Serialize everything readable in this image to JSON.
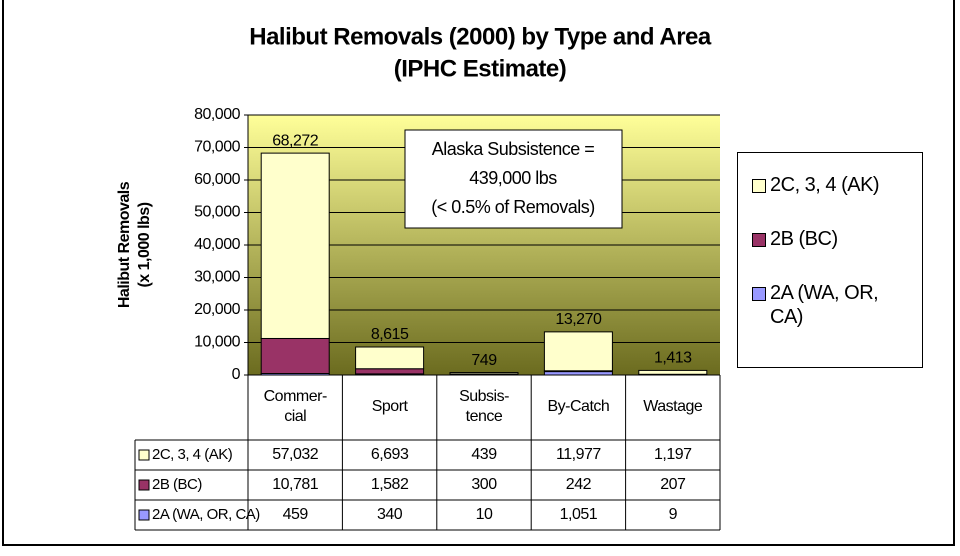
{
  "chart_data": {
    "type": "stacked_bar",
    "title": "Halibut Removals (2000) by Type and Area",
    "subtitle": "(IPHC Estimate)",
    "ylabel": [
      "Halibut Removals",
      "(x 1,000 lbs)"
    ],
    "annotation": [
      "Alaska Subsistence =",
      "439,000 lbs",
      "(< 0.5% of Removals)"
    ],
    "categories": [
      "Commer-\ncial",
      "Sport",
      "Subsis-\ntence",
      "By-Catch",
      "Wastage"
    ],
    "series": [
      {
        "name": "2A (WA, OR, CA)",
        "color": "#9999ff",
        "values": [
          459,
          340,
          10,
          1051,
          9
        ],
        "value_labels": [
          "459",
          "340",
          "10",
          "1,051",
          "9"
        ]
      },
      {
        "name": "2B (BC)",
        "color": "#993366",
        "values": [
          10781,
          1582,
          300,
          242,
          207
        ],
        "value_labels": [
          "10,781",
          "1,582",
          "300",
          "242",
          "207"
        ]
      },
      {
        "name": "2C, 3, 4 (AK)",
        "color": "#ffffcc",
        "values": [
          57032,
          6693,
          439,
          11977,
          1197
        ],
        "value_labels": [
          "57,032",
          "6,693",
          "439",
          "11,977",
          "1,197"
        ]
      }
    ],
    "totals": [
      68272,
      8615,
      749,
      13270,
      1413
    ],
    "total_labels": [
      "68,272",
      "8,615",
      "749",
      "13,270",
      "1,413"
    ],
    "ylim": [
      0,
      80000
    ],
    "yticks": [
      0,
      {
        "value": 10000,
        "label": "10,000"
      },
      {
        "value": 20000,
        "label": "20,000"
      },
      {
        "value": 30000,
        "label": "30,000"
      },
      {
        "value": 40000,
        "label": "40,000"
      },
      {
        "value": 50000,
        "label": "50,000"
      },
      {
        "value": 60000,
        "label": "60,000"
      },
      {
        "value": 70000,
        "label": "70,000"
      },
      {
        "value": 80000,
        "label": "80,000"
      }
    ],
    "grid": true
  }
}
